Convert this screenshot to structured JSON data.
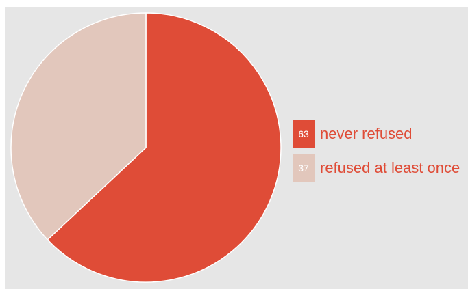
{
  "chart_data": {
    "type": "pie",
    "slices": [
      {
        "label": "never refused",
        "value": 63,
        "value_label": "63",
        "color": "#df4c37",
        "label_color": "#df4c37"
      },
      {
        "label": "refused at least once",
        "value": 37,
        "value_label": "37",
        "color": "#e2c7bc",
        "label_color": "#df4c37"
      }
    ],
    "start_angle_deg": 0,
    "direction": "clockwise",
    "legend_position": "right",
    "background_color": "#e6e6e6",
    "slice_border_color": "#ffffff"
  }
}
